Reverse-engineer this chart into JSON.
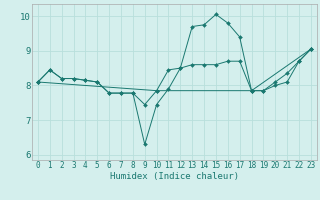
{
  "xlabel": "Humidex (Indice chaleur)",
  "bg_color": "#d4efed",
  "grid_color": "#b8dfdc",
  "line_color": "#1a7870",
  "xlim": [
    -0.5,
    23.5
  ],
  "ylim": [
    5.85,
    10.35
  ],
  "yticks": [
    6,
    7,
    8,
    9,
    10
  ],
  "xticks": [
    0,
    1,
    2,
    3,
    4,
    5,
    6,
    7,
    8,
    9,
    10,
    11,
    12,
    13,
    14,
    15,
    16,
    17,
    18,
    19,
    20,
    21,
    22,
    23
  ],
  "series_spiky_x": [
    0,
    1,
    2,
    3,
    4,
    5,
    6,
    7,
    8,
    9,
    10,
    11,
    12,
    13,
    14,
    15,
    16,
    17,
    18,
    19,
    20,
    21,
    22,
    23
  ],
  "series_spiky_y": [
    8.1,
    8.45,
    8.2,
    8.2,
    8.15,
    8.1,
    7.78,
    7.78,
    7.78,
    6.3,
    7.45,
    7.9,
    8.5,
    9.7,
    9.75,
    10.05,
    9.8,
    9.4,
    7.85,
    7.85,
    8.1,
    8.35,
    8.7,
    9.05
  ],
  "series_smooth_x": [
    0,
    1,
    2,
    3,
    4,
    5,
    6,
    7,
    8,
    9,
    10,
    11,
    12,
    13,
    14,
    15,
    16,
    17,
    18,
    19,
    20,
    21,
    22,
    23
  ],
  "series_smooth_y": [
    8.1,
    8.45,
    8.2,
    8.2,
    8.15,
    8.1,
    7.78,
    7.78,
    7.78,
    7.45,
    7.85,
    8.45,
    8.5,
    8.6,
    8.6,
    8.6,
    8.7,
    8.7,
    7.85,
    7.85,
    8.0,
    8.1,
    8.7,
    9.05
  ],
  "series_trend_x": [
    0,
    10,
    18,
    23
  ],
  "series_trend_y": [
    8.1,
    7.85,
    7.85,
    9.05
  ]
}
